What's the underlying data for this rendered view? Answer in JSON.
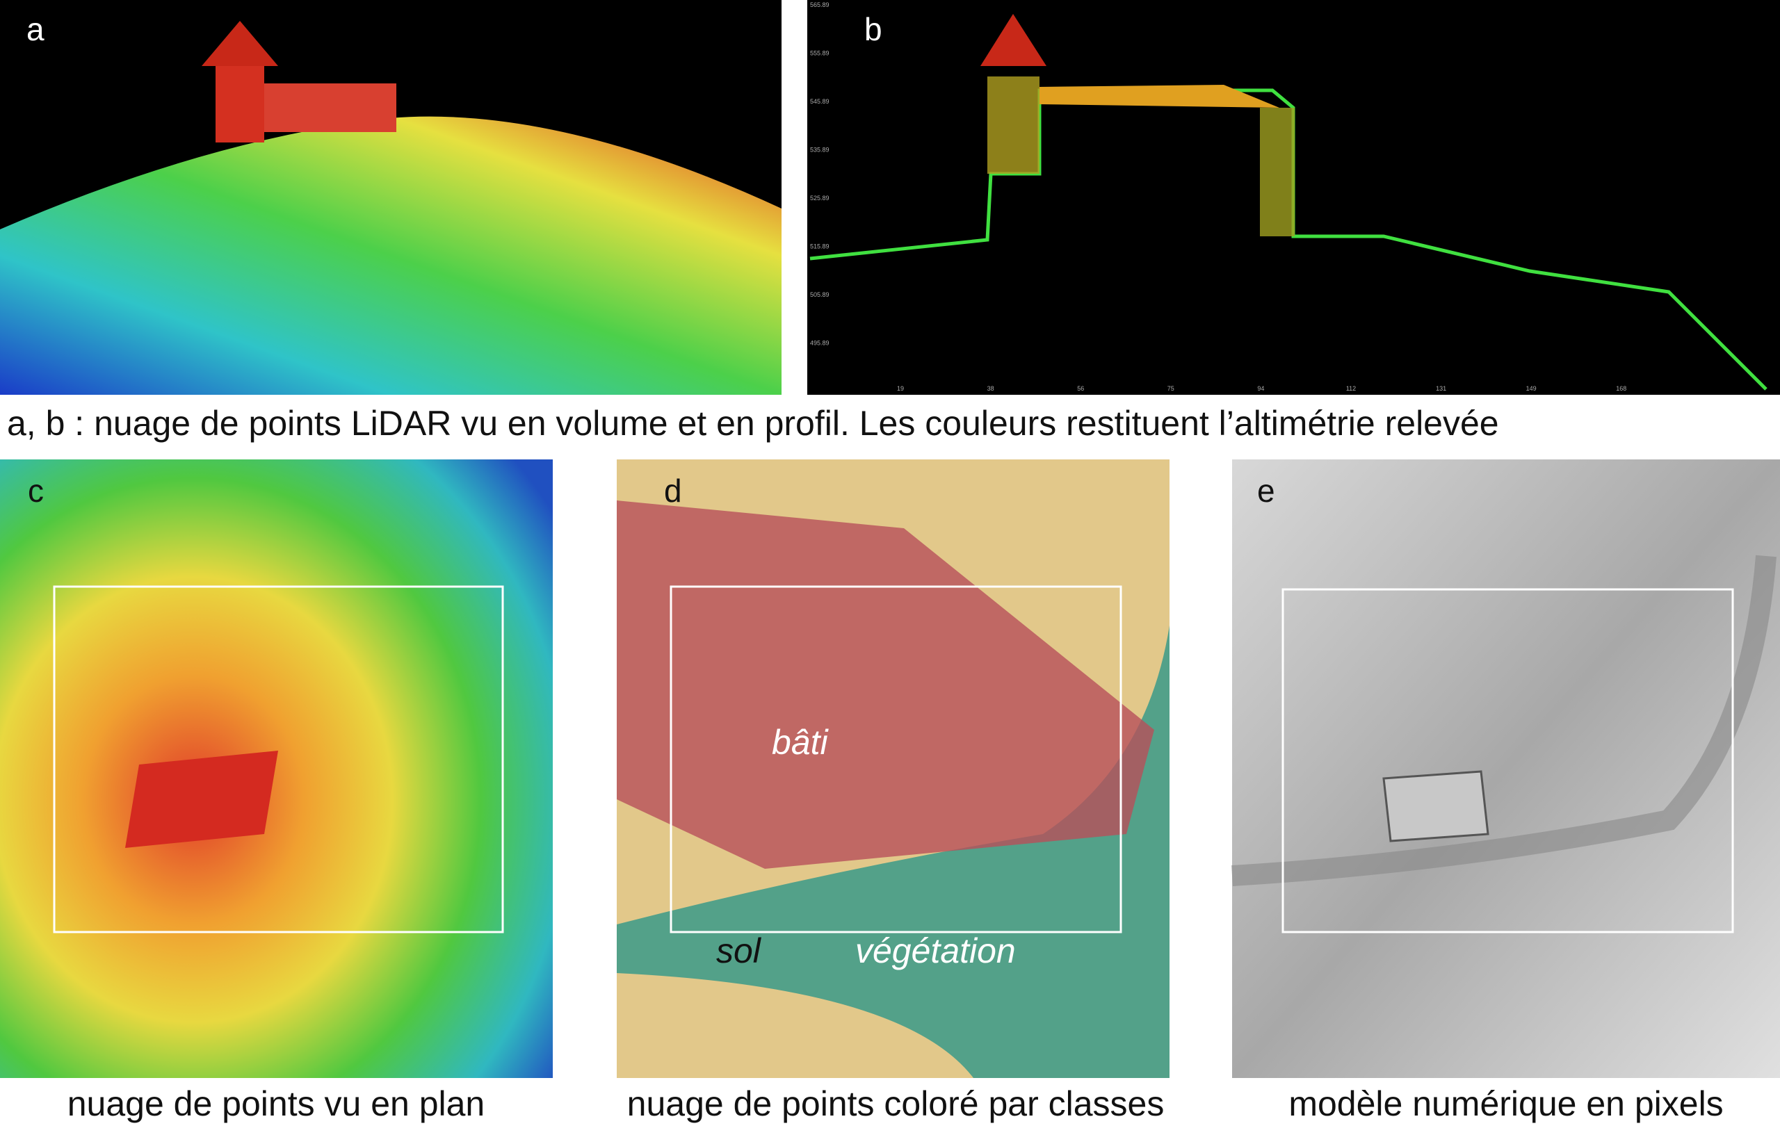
{
  "panels": {
    "a": "a",
    "b": "b",
    "c": "c",
    "d": "d",
    "e": "e"
  },
  "profile_axis": {
    "y_ticks": [
      "565.89",
      "555.89",
      "545.89",
      "535.89",
      "525.89",
      "515.89",
      "505.89",
      "495.89"
    ],
    "x_ticks": [
      "19",
      "38",
      "56",
      "75",
      "94",
      "112",
      "131",
      "149",
      "168"
    ]
  },
  "captions": {
    "ab": "a, b : nuage de points LiDAR vu en volume et en profil. Les couleurs restituent l’altimétrie relevée",
    "c": "nuage de points vu en plan",
    "d": "nuage de points coloré par classes",
    "e": "modèle numérique en pixels"
  },
  "class_labels": {
    "bati": "bâti",
    "sol": "sol",
    "vegetation": "végétation"
  }
}
